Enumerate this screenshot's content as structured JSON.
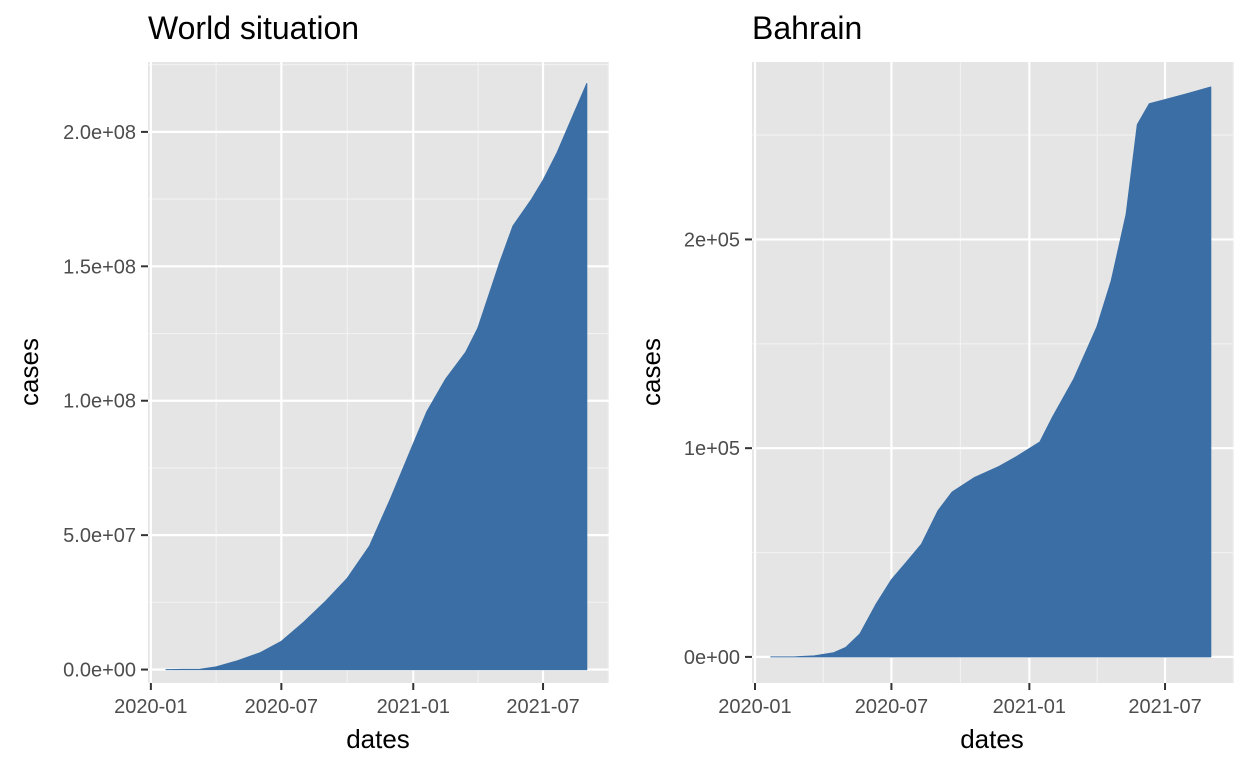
{
  "chart_data": [
    {
      "type": "area",
      "title": "World situation",
      "xlabel": "dates",
      "ylabel": "cases",
      "fill_color": "#3a6ea5",
      "panel_background": "#e5e5e5",
      "grid": true,
      "xlim": [
        "2019-12-28",
        "2021-10-01"
      ],
      "ylim": [
        -5000000,
        226000000
      ],
      "x_ticks": [
        {
          "value": "2020-01-01",
          "label": "2020-01"
        },
        {
          "value": "2020-07-01",
          "label": "2020-07"
        },
        {
          "value": "2021-01-01",
          "label": "2021-01"
        },
        {
          "value": "2021-07-01",
          "label": "2021-07"
        }
      ],
      "y_ticks": [
        {
          "value": 0,
          "label": "0.0e+00"
        },
        {
          "value": 50000000,
          "label": "5.0e+07"
        },
        {
          "value": 100000000,
          "label": "1.0e+08"
        },
        {
          "value": 150000000,
          "label": "1.5e+08"
        },
        {
          "value": 200000000,
          "label": "2.0e+08"
        }
      ],
      "series": [
        {
          "x": [
            "2020-01-22",
            "2020-02-15",
            "2020-03-10",
            "2020-04-01",
            "2020-05-01",
            "2020-06-01",
            "2020-07-01",
            "2020-08-01",
            "2020-09-01",
            "2020-10-01",
            "2020-11-01",
            "2020-12-01",
            "2021-01-01",
            "2021-01-20",
            "2021-02-15",
            "2021-03-15",
            "2021-04-01",
            "2021-05-01",
            "2021-05-20",
            "2021-06-15",
            "2021-07-01",
            "2021-07-20",
            "2021-08-10",
            "2021-08-31"
          ],
          "values": [
            500,
            75000,
            120000,
            1000000,
            3300000,
            6200000,
            10500000,
            17600000,
            25500000,
            34000000,
            46000000,
            64000000,
            84000000,
            96000000,
            108000000,
            118000000,
            127000000,
            151000000,
            165000000,
            175000000,
            182000000,
            192000000,
            205000000,
            218000000
          ]
        }
      ]
    },
    {
      "type": "area",
      "title": "Bahrain",
      "xlabel": "dates",
      "ylabel": "cases",
      "fill_color": "#3a6ea5",
      "panel_background": "#e5e5e5",
      "grid": true,
      "xlim": [
        "2019-12-28",
        "2021-10-01"
      ],
      "ylim": [
        -12500,
        285000
      ],
      "x_ticks": [
        {
          "value": "2020-01-01",
          "label": "2020-01"
        },
        {
          "value": "2020-07-01",
          "label": "2020-07"
        },
        {
          "value": "2021-01-01",
          "label": "2021-01"
        },
        {
          "value": "2021-07-01",
          "label": "2021-07"
        }
      ],
      "y_ticks": [
        {
          "value": 0,
          "label": "0e+00"
        },
        {
          "value": 100000,
          "label": "1e+05"
        },
        {
          "value": 200000,
          "label": "2e+05"
        }
      ],
      "series": [
        {
          "x": [
            "2020-01-22",
            "2020-02-24",
            "2020-03-20",
            "2020-04-15",
            "2020-05-01",
            "2020-05-20",
            "2020-06-10",
            "2020-07-01",
            "2020-07-20",
            "2020-08-10",
            "2020-09-01",
            "2020-09-20",
            "2020-10-20",
            "2020-11-20",
            "2020-12-15",
            "2021-01-15",
            "2021-02-01",
            "2021-03-01",
            "2021-04-01",
            "2021-04-20",
            "2021-05-10",
            "2021-05-25",
            "2021-06-10",
            "2021-07-01",
            "2021-08-01",
            "2021-08-31"
          ],
          "values": [
            0,
            100,
            500,
            2000,
            4500,
            11000,
            25000,
            37000,
            45000,
            54000,
            70000,
            79000,
            86000,
            91000,
            96000,
            103000,
            115000,
            133000,
            158000,
            180000,
            212000,
            255000,
            265000,
            267000,
            270000,
            273000
          ]
        }
      ]
    }
  ]
}
